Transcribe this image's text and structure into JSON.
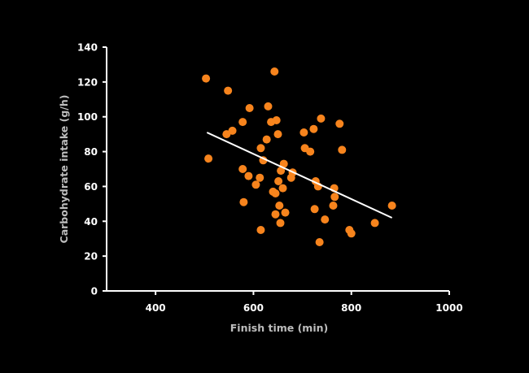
{
  "chart_data": {
    "type": "scatter",
    "title": "",
    "xlabel": "Finish time (min)",
    "ylabel": "Carbohydrate intake (g/h)",
    "xlim": [
      300,
      1000
    ],
    "ylim": [
      0,
      140
    ],
    "xticks": [
      400,
      600,
      800,
      1000
    ],
    "yticks": [
      0,
      20,
      40,
      60,
      80,
      100,
      120,
      140
    ],
    "grid": false,
    "legend": "none",
    "colors": {
      "background": "#000000",
      "points": "#F7841D",
      "trendline": "#ffffff",
      "axes": "#ffffff"
    },
    "points": [
      {
        "x": 503,
        "y": 122
      },
      {
        "x": 508,
        "y": 76
      },
      {
        "x": 545,
        "y": 90
      },
      {
        "x": 548,
        "y": 115
      },
      {
        "x": 557,
        "y": 92
      },
      {
        "x": 578,
        "y": 97
      },
      {
        "x": 578,
        "y": 70
      },
      {
        "x": 580,
        "y": 51
      },
      {
        "x": 590,
        "y": 66
      },
      {
        "x": 592,
        "y": 105
      },
      {
        "x": 605,
        "y": 61
      },
      {
        "x": 613,
        "y": 65
      },
      {
        "x": 615,
        "y": 35
      },
      {
        "x": 615,
        "y": 82
      },
      {
        "x": 620,
        "y": 75
      },
      {
        "x": 627,
        "y": 87
      },
      {
        "x": 630,
        "y": 106
      },
      {
        "x": 636,
        "y": 97
      },
      {
        "x": 640,
        "y": 57
      },
      {
        "x": 643,
        "y": 126
      },
      {
        "x": 645,
        "y": 56
      },
      {
        "x": 645,
        "y": 44
      },
      {
        "x": 647,
        "y": 98
      },
      {
        "x": 650,
        "y": 90
      },
      {
        "x": 651,
        "y": 63
      },
      {
        "x": 653,
        "y": 49
      },
      {
        "x": 655,
        "y": 39
      },
      {
        "x": 656,
        "y": 69
      },
      {
        "x": 660,
        "y": 59
      },
      {
        "x": 662,
        "y": 73
      },
      {
        "x": 665,
        "y": 45
      },
      {
        "x": 677,
        "y": 65
      },
      {
        "x": 680,
        "y": 68
      },
      {
        "x": 703,
        "y": 91
      },
      {
        "x": 705,
        "y": 82
      },
      {
        "x": 716,
        "y": 80
      },
      {
        "x": 723,
        "y": 93
      },
      {
        "x": 725,
        "y": 47
      },
      {
        "x": 727,
        "y": 63
      },
      {
        "x": 732,
        "y": 60
      },
      {
        "x": 735,
        "y": 28
      },
      {
        "x": 738,
        "y": 99
      },
      {
        "x": 746,
        "y": 41
      },
      {
        "x": 763,
        "y": 49
      },
      {
        "x": 765,
        "y": 59
      },
      {
        "x": 766,
        "y": 54
      },
      {
        "x": 776,
        "y": 96
      },
      {
        "x": 781,
        "y": 81
      },
      {
        "x": 796,
        "y": 35
      },
      {
        "x": 800,
        "y": 33
      },
      {
        "x": 848,
        "y": 39
      },
      {
        "x": 883,
        "y": 49
      }
    ],
    "trendline": {
      "x": [
        505,
        883
      ],
      "y": [
        91,
        42
      ]
    }
  }
}
